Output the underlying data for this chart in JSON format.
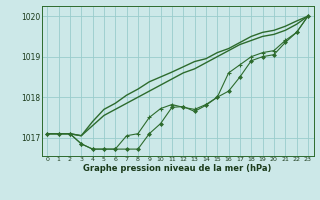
{
  "title": "Graphe pression niveau de la mer (hPa)",
  "background_color": "#cce8e8",
  "grid_color": "#99cccc",
  "line_color": "#2d6b2d",
  "xlim": [
    -0.5,
    23.5
  ],
  "ylim": [
    1016.55,
    1020.25
  ],
  "yticks": [
    1017,
    1018,
    1019,
    1020
  ],
  "xticks": [
    0,
    1,
    2,
    3,
    4,
    5,
    6,
    7,
    8,
    9,
    10,
    11,
    12,
    13,
    14,
    15,
    16,
    17,
    18,
    19,
    20,
    21,
    22,
    23
  ],
  "smooth_line": [
    1017.1,
    1017.1,
    1017.1,
    1017.05,
    1017.3,
    1017.55,
    1017.7,
    1017.85,
    1018.0,
    1018.15,
    1018.3,
    1018.45,
    1018.6,
    1018.7,
    1018.85,
    1019.0,
    1019.15,
    1019.3,
    1019.4,
    1019.5,
    1019.55,
    1019.65,
    1019.8,
    1020.0
  ],
  "upper_line": [
    1017.1,
    1017.1,
    1017.1,
    1017.05,
    1017.4,
    1017.7,
    1017.85,
    1018.05,
    1018.2,
    1018.38,
    1018.5,
    1018.62,
    1018.75,
    1018.88,
    1018.95,
    1019.1,
    1019.2,
    1019.35,
    1019.5,
    1019.6,
    1019.65,
    1019.75,
    1019.88,
    1020.0
  ],
  "jagged_line": [
    1017.1,
    1017.1,
    1017.1,
    1016.85,
    1016.72,
    1016.72,
    1016.72,
    1016.72,
    1016.72,
    1017.1,
    1017.35,
    1017.75,
    1017.77,
    1017.65,
    1017.8,
    1018.0,
    1018.15,
    1018.5,
    1018.9,
    1019.0,
    1019.05,
    1019.35,
    1019.6,
    1020.0
  ],
  "marker_line": [
    1017.1,
    1017.1,
    1017.1,
    1016.85,
    1016.72,
    1016.72,
    1016.72,
    1017.05,
    1017.1,
    1017.5,
    1017.72,
    1017.82,
    1017.75,
    1017.7,
    1017.82,
    1018.0,
    1018.6,
    1018.8,
    1019.0,
    1019.1,
    1019.15,
    1019.4,
    1019.6,
    1020.0
  ]
}
